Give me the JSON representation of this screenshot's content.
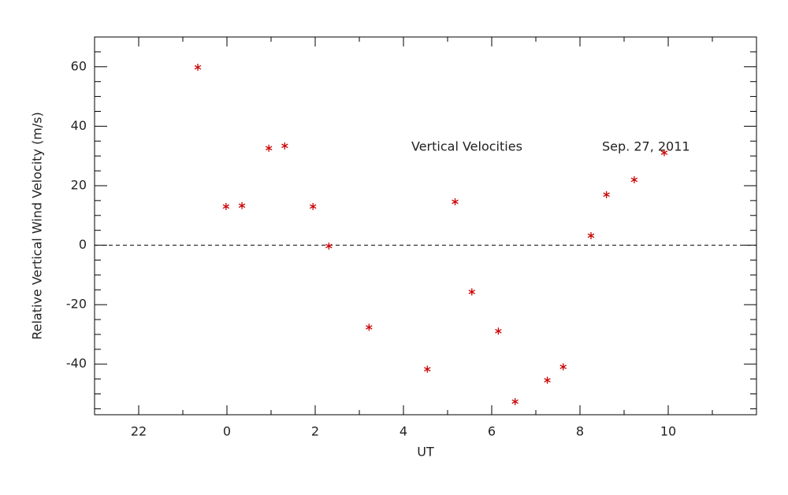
{
  "chart_data": {
    "type": "scatter",
    "x_label": "UT",
    "y_label": "Relative Vertical Wind Velocity (m/s)",
    "annotations": [
      "Vertical Velocities",
      "Sep. 27, 2011"
    ],
    "xlim": [
      -3,
      12
    ],
    "ylim": [
      -57,
      70
    ],
    "xticks": [
      {
        "value": -2,
        "label": "22"
      },
      0,
      2,
      4,
      6,
      8,
      10
    ],
    "yticks": [
      -40,
      -20,
      0,
      20,
      40,
      60
    ],
    "xminor_ticks": [
      -3,
      -1,
      1,
      3,
      5,
      7,
      9,
      11
    ],
    "yminor_ticks": [
      -55,
      -50,
      -45,
      -35,
      -30,
      -25,
      -15,
      -10,
      -5,
      5,
      10,
      15,
      25,
      30,
      35,
      45,
      50,
      55,
      65,
      70
    ],
    "reference_line": 0,
    "color": "#cc0000",
    "x": [
      -0.66,
      -0.02,
      0.34,
      0.95,
      1.31,
      1.95,
      2.31,
      3.22,
      4.54,
      5.17,
      5.55,
      6.15,
      6.53,
      7.26,
      7.62,
      8.25,
      8.6,
      9.23,
      9.91
    ],
    "values": [
      59.8,
      13,
      13.3,
      32.6,
      33.4,
      13,
      -0.3,
      -27.6,
      -41.7,
      14.6,
      -15.7,
      -28.9,
      -52.6,
      -45.4,
      -40.9,
      3.2,
      17,
      22,
      31.1
    ]
  }
}
